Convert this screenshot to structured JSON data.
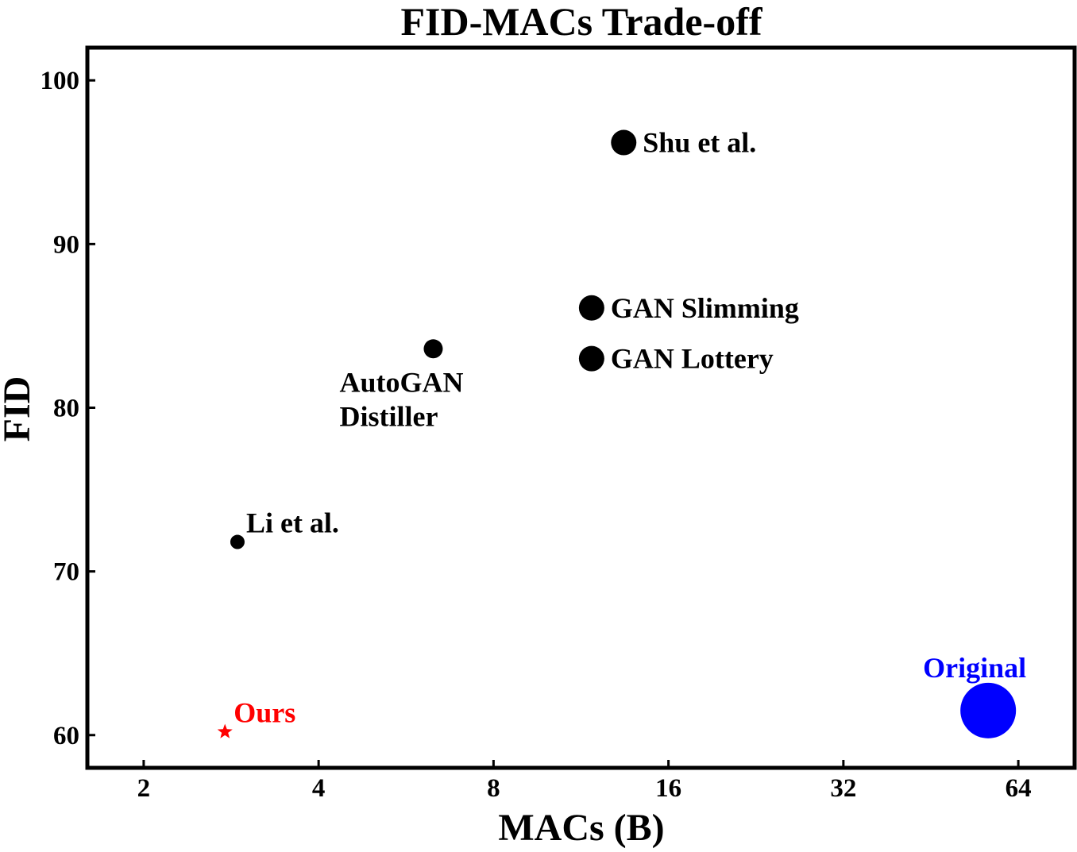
{
  "chart_data": {
    "type": "scatter",
    "title": "FID-MACs Trade-off",
    "xlabel": "MACs (B)",
    "ylabel": "FID",
    "x_scale": "log2",
    "xlim": [
      1.6,
      80
    ],
    "ylim": [
      58,
      102
    ],
    "x_ticks": [
      2,
      4,
      8,
      16,
      32,
      64
    ],
    "y_ticks": [
      60,
      70,
      80,
      90,
      100
    ],
    "grid": false,
    "legend": "none",
    "points": [
      {
        "label": "Shu et al.",
        "x": 13.4,
        "y": 96.2,
        "marker": "circle",
        "size_rank": 3,
        "color": "#000000",
        "label_pos": "right"
      },
      {
        "label": "GAN Slimming",
        "x": 11.8,
        "y": 86.1,
        "marker": "circle",
        "size_rank": 3,
        "color": "#000000",
        "label_pos": "right"
      },
      {
        "label": "GAN Lottery",
        "x": 11.8,
        "y": 83.0,
        "marker": "circle",
        "size_rank": 3,
        "color": "#000000",
        "label_pos": "right"
      },
      {
        "label_lines": [
          "AutoGAN",
          "Distiller"
        ],
        "x": 6.3,
        "y": 83.6,
        "marker": "circle",
        "size_rank": 2,
        "color": "#000000",
        "label_pos": "below-left"
      },
      {
        "label": "Li et al.",
        "x": 2.9,
        "y": 71.8,
        "marker": "circle",
        "size_rank": 1,
        "color": "#000000",
        "label_pos": "upper-right"
      },
      {
        "label": "Ours",
        "x": 2.76,
        "y": 60.2,
        "marker": "star",
        "size_rank": 1,
        "color": "#ff0000",
        "label_pos": "upper-right"
      },
      {
        "label": "Original",
        "x": 56.8,
        "y": 61.5,
        "marker": "circle",
        "size_rank": 5,
        "color": "#0000ff",
        "label_pos": "above"
      }
    ]
  }
}
